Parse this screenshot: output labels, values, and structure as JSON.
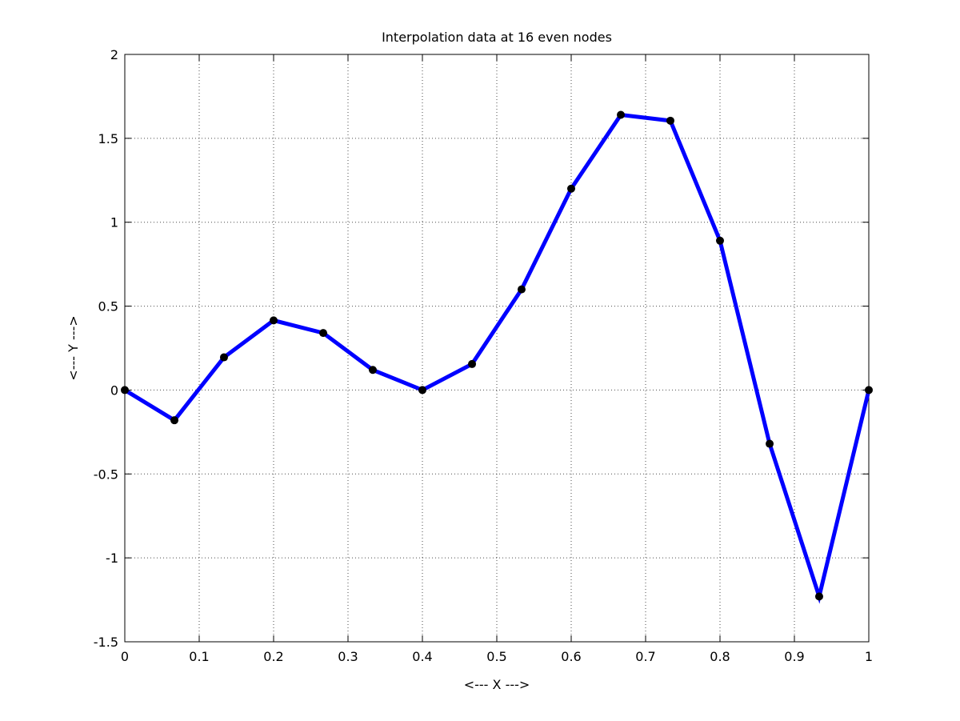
{
  "chart_data": {
    "type": "line",
    "title": "Interpolation data at 16 even nodes",
    "xlabel": "<--- X --->",
    "ylabel": "<--- Y --->",
    "xlim": [
      0,
      1
    ],
    "ylim": [
      -1.5,
      2
    ],
    "xticks": [
      0,
      0.1,
      0.2,
      0.3,
      0.4,
      0.5,
      0.6,
      0.7,
      0.8,
      0.9,
      1
    ],
    "xtick_labels": [
      "0",
      "0.1",
      "0.2",
      "0.3",
      "0.4",
      "0.5",
      "0.6",
      "0.7",
      "0.8",
      "0.9",
      "1"
    ],
    "yticks": [
      -1.5,
      -1,
      -0.5,
      0,
      0.5,
      1,
      1.5,
      2
    ],
    "ytick_labels": [
      "-1.5",
      "-1",
      "-0.5",
      "0",
      "0.5",
      "1",
      "1.5",
      "2"
    ],
    "grid": true,
    "series": [
      {
        "color": "#0000ff",
        "marker_color": "#000000",
        "x": [
          0,
          0.0667,
          0.1333,
          0.2,
          0.2667,
          0.3333,
          0.4,
          0.4667,
          0.5333,
          0.6,
          0.6667,
          0.7333,
          0.8,
          0.8667,
          0.9333,
          1
        ],
        "y": [
          0,
          -0.18,
          0.195,
          0.415,
          0.34,
          0.12,
          0,
          0.155,
          0.6,
          1.2,
          1.64,
          1.605,
          0.89,
          -0.32,
          -1.23,
          0
        ]
      }
    ]
  }
}
